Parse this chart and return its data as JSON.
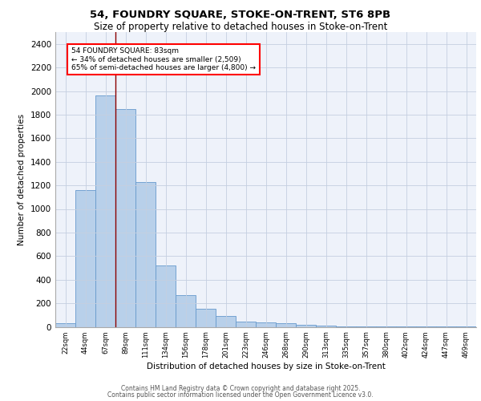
{
  "title1": "54, FOUNDRY SQUARE, STOKE-ON-TRENT, ST6 8PB",
  "title2": "Size of property relative to detached houses in Stoke-on-Trent",
  "xlabel": "Distribution of detached houses by size in Stoke-on-Trent",
  "ylabel": "Number of detached properties",
  "categories": [
    "22sqm",
    "44sqm",
    "67sqm",
    "89sqm",
    "111sqm",
    "134sqm",
    "156sqm",
    "178sqm",
    "201sqm",
    "223sqm",
    "246sqm",
    "268sqm",
    "290sqm",
    "313sqm",
    "335sqm",
    "357sqm",
    "380sqm",
    "402sqm",
    "424sqm",
    "447sqm",
    "469sqm"
  ],
  "values": [
    30,
    1160,
    1960,
    1850,
    1230,
    520,
    270,
    155,
    90,
    45,
    35,
    30,
    15,
    10,
    6,
    5,
    5,
    4,
    4,
    4,
    3
  ],
  "bar_color": "#b8d0ea",
  "bar_edge_color": "#6699cc",
  "red_line_x": 2.5,
  "annotation_text": "54 FOUNDRY SQUARE: 83sqm\n← 34% of detached houses are smaller (2,509)\n65% of semi-detached houses are larger (4,800) →",
  "annotation_box_color": "white",
  "annotation_box_edge": "red",
  "ylim": [
    0,
    2500
  ],
  "yticks": [
    0,
    200,
    400,
    600,
    800,
    1000,
    1200,
    1400,
    1600,
    1800,
    2000,
    2200,
    2400
  ],
  "footer1": "Contains HM Land Registry data © Crown copyright and database right 2025.",
  "footer2": "Contains public sector information licensed under the Open Government Licence v3.0.",
  "bg_color": "#eef2fa",
  "grid_color": "#c5cfe0"
}
